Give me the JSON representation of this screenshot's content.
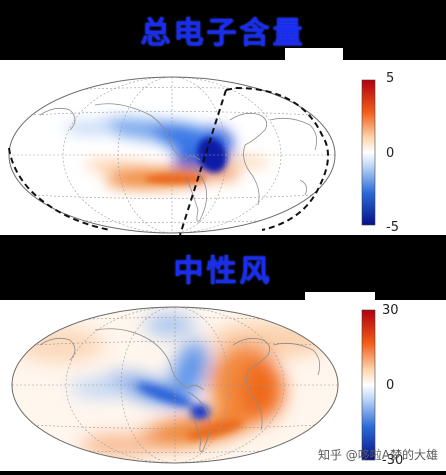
{
  "panels": [
    {
      "title": "总电子含量",
      "title_color": "#1a2cf0",
      "colorbar": {
        "max_label": "5",
        "mid_label": "0",
        "min_label": "-5"
      },
      "terminator_line": "dashed"
    },
    {
      "title": "中性风",
      "title_color": "#1a2cf0",
      "colorbar": {
        "max_label": "30",
        "mid_label": "0",
        "min_label": "-30"
      }
    }
  ],
  "colormap": {
    "positive": "#c8102e",
    "warm": "#f07a20",
    "neutral": "#ffffff",
    "cool": "#3a7fe0",
    "negative": "#0a1aa0"
  },
  "watermark": "知乎 @哆啦A梦的大雄"
}
